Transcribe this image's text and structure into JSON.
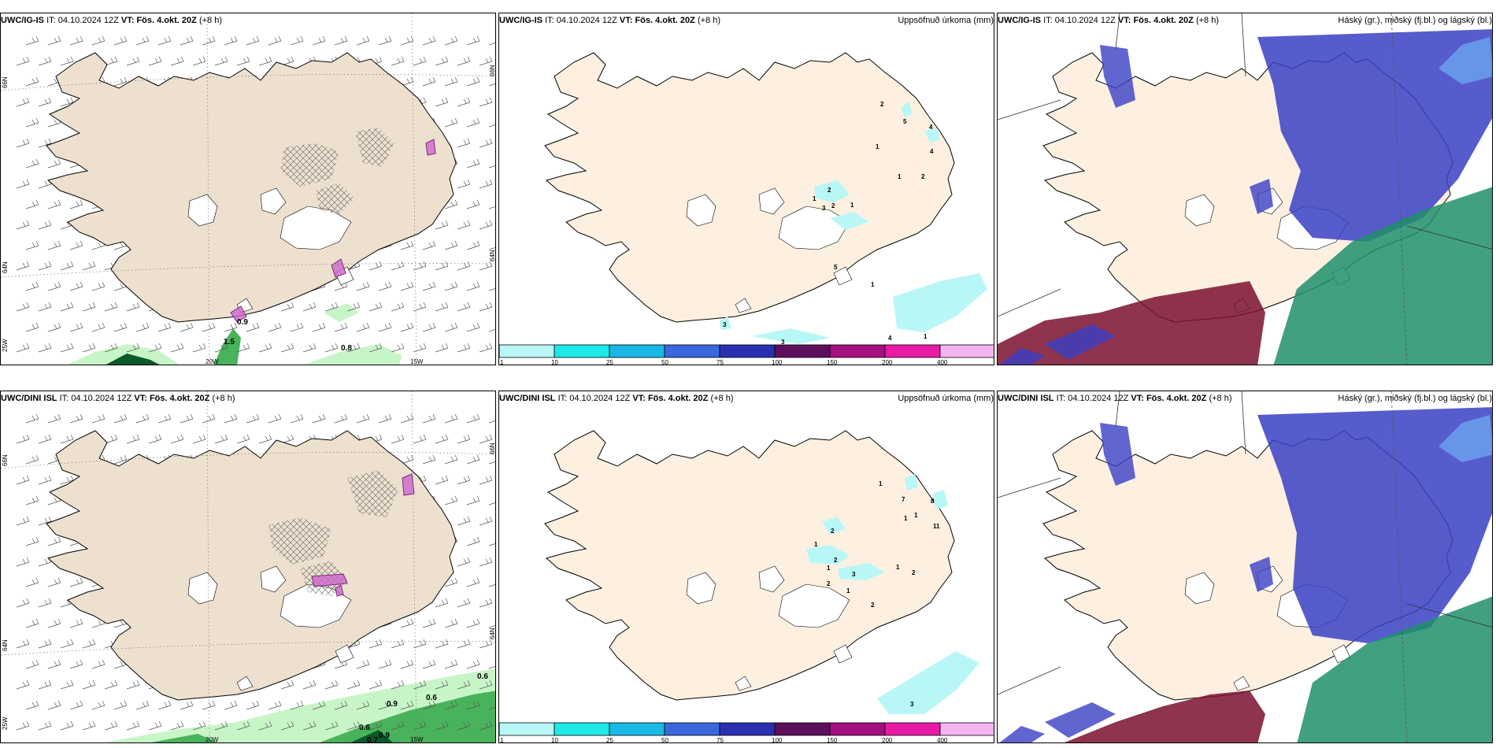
{
  "panels": [
    {
      "model": "UWC/IG-IS",
      "it_label": "IT:",
      "it_time": "04.10.2024 12Z",
      "vt_label": "VT:",
      "vt_time": "Fös. 4.okt. 20Z",
      "lead": "(+8 h)",
      "right_label": "",
      "lon_labels": [
        "20W",
        "15W"
      ],
      "lat_labels_left": [
        "66N",
        "64N",
        "25W"
      ],
      "lat_labels_right": [
        "66N",
        "64N"
      ],
      "values": [
        "0.8",
        "1.5",
        "0.9"
      ]
    },
    {
      "model": "UWC/IG-IS",
      "it_label": "IT:",
      "it_time": "04.10.2024 12Z",
      "vt_label": "VT:",
      "vt_time": "Fös. 4.okt. 20Z",
      "lead": "(+8 h)",
      "right_label": "Uppsöfnuð úrkoma (mm)",
      "values": [
        "2",
        "5",
        "4",
        "1",
        "4",
        "1",
        "2",
        "2",
        "1",
        "1",
        "3",
        "2",
        "5",
        "1",
        "3",
        "1",
        "4",
        "3"
      ]
    },
    {
      "model": "UWC/IG-IS",
      "it_label": "IT:",
      "it_time": "04.10.2024 12Z",
      "vt_label": "VT:",
      "vt_time": "Fös. 4.okt. 20Z",
      "lead": "(+8 h)",
      "right_label": "Háský (gr.), miðský (fj.bl.) og lágský (bl.)"
    },
    {
      "model": "UWC/DINI ISL",
      "it_label": "IT:",
      "it_time": "04.10.2024 12Z",
      "vt_label": "VT:",
      "vt_time": "Fös. 4.okt. 20Z",
      "lead": "(+8 h)",
      "right_label": "",
      "lon_labels": [
        "20W",
        "15W"
      ],
      "lat_labels_left": [
        "66N",
        "64N",
        "25W"
      ],
      "lat_labels_right": [
        "66N",
        "64N"
      ],
      "values": [
        "0.6",
        "0.6",
        "0.9",
        "0.6",
        "0.9",
        "0.7"
      ]
    },
    {
      "model": "UWC/DINI ISL",
      "it_label": "IT:",
      "it_time": "04.10.2024 12Z",
      "vt_label": "VT:",
      "vt_time": "Fös. 4.okt. 20Z",
      "lead": "(+8 h)",
      "right_label": "Uppsöfnuð úrkoma (mm)",
      "values": [
        "1",
        "7",
        "8",
        "1",
        "1",
        "11",
        "1",
        "2",
        "1",
        "2",
        "3",
        "1",
        "2",
        "2",
        "1",
        "2",
        "3"
      ]
    },
    {
      "model": "UWC/DINI ISL",
      "it_label": "IT:",
      "it_time": "04.10.2024 12Z",
      "vt_label": "VT:",
      "vt_time": "Fös. 4.okt. 20Z",
      "lead": "(+8 h)",
      "right_label": "Háský (gr.), miðský (fj.bl.) og lágský (bl.)"
    }
  ],
  "colorbar": {
    "labels": [
      "1",
      "10",
      "25",
      "50",
      "75",
      "100",
      "150",
      "200",
      "400"
    ],
    "colors": [
      "#b9f7f7",
      "#1ee8e8",
      "#18b9e6",
      "#3a67dc",
      "#2a2fb0",
      "#5c0f5c",
      "#a4107f",
      "#e81aa6",
      "#f5b3f0"
    ]
  },
  "colors": {
    "land": "#ede0cf",
    "land_plain": "#fdf0e1",
    "green_dark": "#0a5a2a",
    "green_mid": "#49b35b",
    "green_light": "#c8f5c8",
    "precip_cyan": "#b9f7f7",
    "cloud_high": "#1f8f6a",
    "cloud_mid": "#3a3fc4",
    "cloud_low": "#7a1030",
    "cloud_blue_light": "#6ba5f0",
    "mslp_purple": "#cc66cc"
  }
}
